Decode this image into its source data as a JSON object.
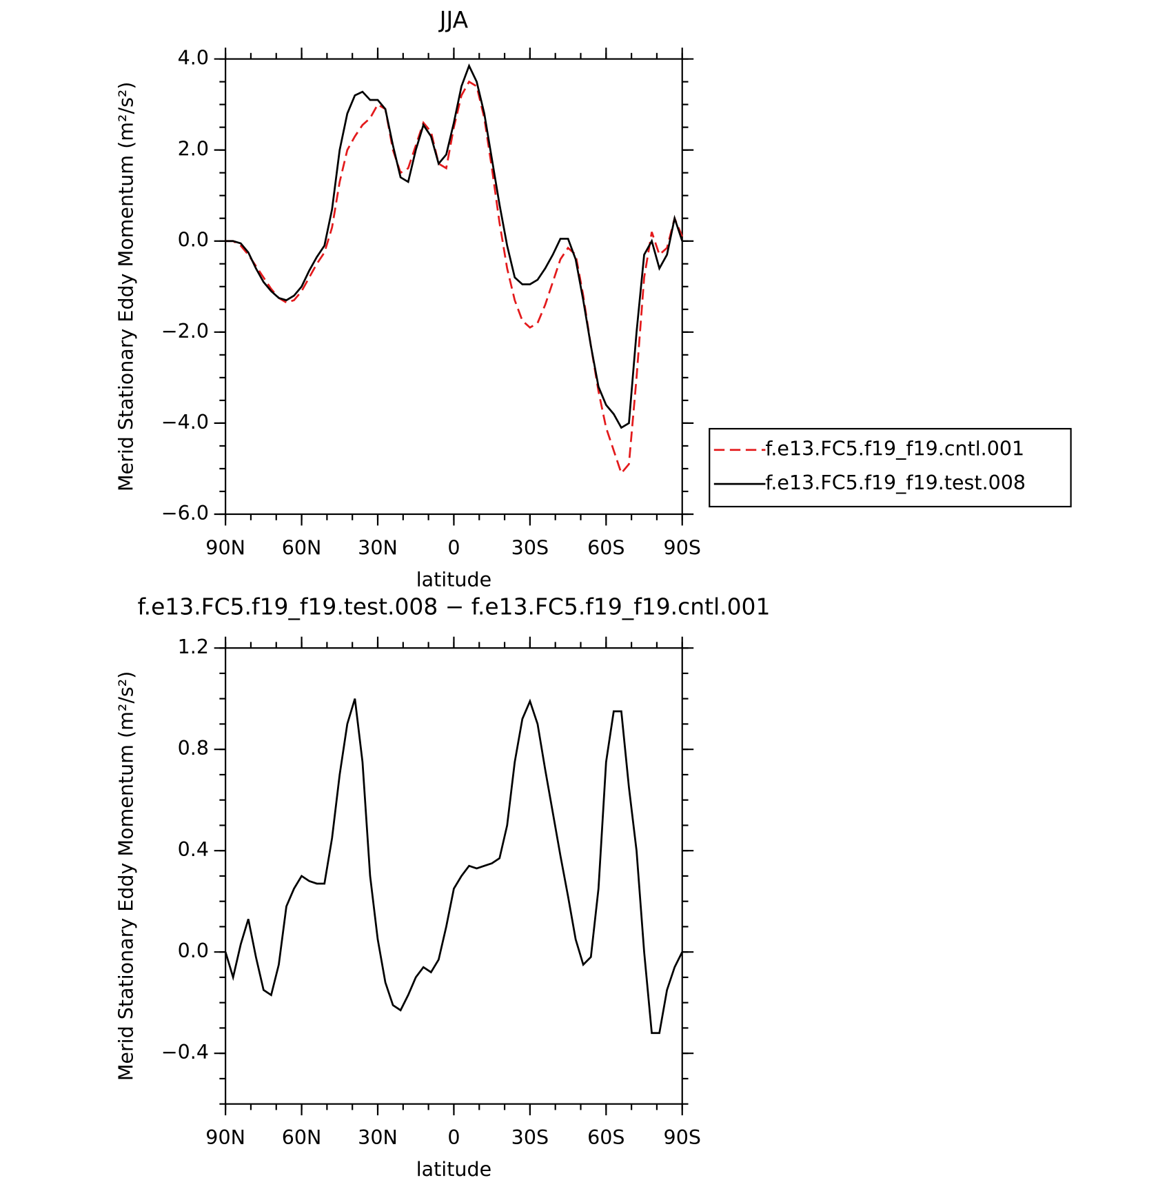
{
  "chart_data": [
    {
      "type": "line",
      "title": "JJA",
      "xlabel": "latitude",
      "ylabel": "Merid Stationary Eddy Momentum (m²/s²)",
      "x": [
        90,
        87,
        84,
        81,
        78,
        75,
        72,
        69,
        66,
        63,
        60,
        57,
        54,
        51,
        48,
        45,
        42,
        39,
        36,
        33,
        30,
        27,
        24,
        21,
        18,
        15,
        12,
        9,
        6,
        3,
        0,
        -3,
        -6,
        -9,
        -12,
        -15,
        -18,
        -21,
        -24,
        -27,
        -30,
        -33,
        -36,
        -39,
        -42,
        -45,
        -48,
        -51,
        -54,
        -57,
        -60,
        -63,
        -66,
        -69,
        -72,
        -75,
        -78,
        -81,
        -84,
        -87,
        -90
      ],
      "series": [
        {
          "name": "f.e13.FC5.f19_f19.cntl.001",
          "color": "#e31a1c",
          "linestyle": "dashed",
          "values": [
            0,
            0,
            -0.1,
            -0.3,
            -0.55,
            -0.8,
            -1.05,
            -1.25,
            -1.35,
            -1.3,
            -1.1,
            -0.8,
            -0.5,
            -0.25,
            0.3,
            1.3,
            2.0,
            2.3,
            2.55,
            2.7,
            3.0,
            2.9,
            2.0,
            1.5,
            1.6,
            2.1,
            2.6,
            2.4,
            1.7,
            1.6,
            2.5,
            3.2,
            3.5,
            3.4,
            2.7,
            1.6,
            0.4,
            -0.6,
            -1.3,
            -1.75,
            -1.9,
            -1.8,
            -1.4,
            -0.9,
            -0.4,
            -0.15,
            -0.3,
            -1.2,
            -2.3,
            -3.3,
            -4.1,
            -4.6,
            -5.1,
            -4.9,
            -3.0,
            -0.8,
            0.2,
            -0.3,
            -0.15,
            0.5,
            0.1
          ]
        },
        {
          "name": "f.e13.FC5.f19_f19.test.008",
          "color": "#000000",
          "linestyle": "solid",
          "values": [
            0,
            0,
            -0.05,
            -0.25,
            -0.6,
            -0.9,
            -1.1,
            -1.25,
            -1.3,
            -1.2,
            -1.0,
            -0.65,
            -0.35,
            -0.1,
            0.7,
            2.0,
            2.8,
            3.2,
            3.28,
            3.1,
            3.1,
            2.9,
            2.1,
            1.4,
            1.3,
            2.0,
            2.55,
            2.3,
            1.7,
            1.9,
            2.6,
            3.4,
            3.85,
            3.5,
            2.8,
            1.8,
            0.8,
            -0.1,
            -0.8,
            -0.95,
            -0.95,
            -0.85,
            -0.6,
            -0.3,
            0.05,
            0.05,
            -0.4,
            -1.3,
            -2.3,
            -3.2,
            -3.6,
            -3.8,
            -4.1,
            -4.0,
            -2.0,
            -0.3,
            0.0,
            -0.6,
            -0.3,
            0.5,
            0.0
          ]
        }
      ],
      "xlim": [
        90,
        -90
      ],
      "xticks": [
        {
          "value": 90,
          "label": "90N"
        },
        {
          "value": 60,
          "label": "60N"
        },
        {
          "value": 30,
          "label": "30N"
        },
        0,
        {
          "value": -30,
          "label": "30S"
        },
        {
          "value": -60,
          "label": "60S"
        },
        {
          "value": -90,
          "label": "90S"
        }
      ],
      "ylim": [
        -6,
        4
      ],
      "yticks": [
        {
          "value": -6,
          "label": "−6.0"
        },
        {
          "value": -4,
          "label": "−4.0"
        },
        {
          "value": -2,
          "label": "−2.0"
        },
        {
          "value": 0,
          "label": "0.0"
        },
        {
          "value": 2,
          "label": "2.0"
        },
        {
          "value": 4,
          "label": "4.0"
        }
      ],
      "legend": "right",
      "grid": false
    },
    {
      "type": "line",
      "title": "f.e13.FC5.f19_f19.test.008 − f.e13.FC5.f19_f19.cntl.001",
      "xlabel": "latitude",
      "ylabel": "Merid Stationary Eddy Momentum (m²/s²)",
      "x": [
        90,
        87,
        84,
        81,
        78,
        75,
        72,
        69,
        66,
        63,
        60,
        57,
        54,
        51,
        48,
        45,
        42,
        39,
        36,
        33,
        30,
        27,
        24,
        21,
        18,
        15,
        12,
        9,
        6,
        3,
        0,
        -3,
        -6,
        -9,
        -12,
        -15,
        -18,
        -21,
        -24,
        -27,
        -30,
        -33,
        -36,
        -39,
        -42,
        -45,
        -48,
        -51,
        -54,
        -57,
        -60,
        -63,
        -66,
        -69,
        -72,
        -75,
        -78,
        -81,
        -84,
        -87,
        -90
      ],
      "color": "#000000",
      "values": [
        0,
        -0.1,
        0.03,
        0.13,
        -0.02,
        -0.15,
        -0.17,
        -0.05,
        0.18,
        0.25,
        0.3,
        0.28,
        0.27,
        0.27,
        0.45,
        0.7,
        0.9,
        1.0,
        0.75,
        0.3,
        0.05,
        -0.12,
        -0.21,
        -0.23,
        -0.17,
        -0.1,
        -0.06,
        -0.08,
        -0.03,
        0.1,
        0.25,
        0.3,
        0.34,
        0.33,
        0.34,
        0.35,
        0.37,
        0.5,
        0.75,
        0.92,
        0.99,
        0.9,
        0.72,
        0.55,
        0.38,
        0.22,
        0.05,
        -0.05,
        -0.02,
        0.25,
        0.75,
        0.95,
        0.95,
        0.65,
        0.4,
        0,
        -0.32,
        -0.32,
        -0.15,
        -0.06,
        0
      ],
      "xlim": [
        90,
        -90
      ],
      "xticks": [
        {
          "value": 90,
          "label": "90N"
        },
        {
          "value": 60,
          "label": "60N"
        },
        {
          "value": 30,
          "label": "30N"
        },
        0,
        {
          "value": -30,
          "label": "30S"
        },
        {
          "value": -60,
          "label": "60S"
        },
        {
          "value": -90,
          "label": "90S"
        }
      ],
      "ylim": [
        -0.6,
        1.2
      ],
      "yticks": [
        {
          "value": -0.4,
          "label": "−0.4"
        },
        {
          "value": 0,
          "label": "0.0"
        },
        {
          "value": 0.4,
          "label": "0.4"
        },
        {
          "value": 0.8,
          "label": "0.8"
        },
        {
          "value": 1.2,
          "label": "1.2"
        }
      ],
      "grid": false
    }
  ]
}
